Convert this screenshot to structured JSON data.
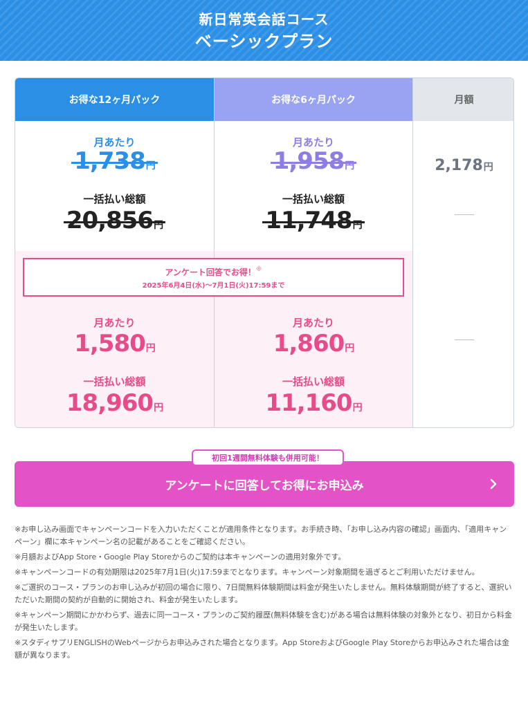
{
  "header": {
    "course": "新日常英会話コース",
    "plan": "ベーシックプラン"
  },
  "columns": [
    {
      "title": "お得な12ヶ月パック",
      "regular": {
        "month_label": "月あたり",
        "month_price": "1,738",
        "total_label": "一括払い総額",
        "total_price": "20,856"
      },
      "campaign": {
        "month_label": "月あたり",
        "month_price": "1,580",
        "total_label": "一括払い総額",
        "total_price": "18,960"
      }
    },
    {
      "title": "お得な6ヶ月パック",
      "regular": {
        "month_label": "月あたり",
        "month_price": "1,958",
        "total_label": "一括払い総額",
        "total_price": "11,748"
      },
      "campaign": {
        "month_label": "月あたり",
        "month_price": "1,860",
        "total_label": "一括払い総額",
        "total_price": "11,160"
      }
    },
    {
      "title": "月額",
      "price": "2,178"
    }
  ],
  "yen": "円",
  "campaign_box": {
    "title": "アンケート回答でお得！",
    "note_mark": "※",
    "period": "2025年6月4日(水)〜7月1日(火)17:59まで"
  },
  "cta": {
    "badge": "初回1週間無料体験も併用可能！",
    "label": "アンケートに回答してお得にお申込み"
  },
  "notes": [
    "※お申し込み画面でキャンペーンコードを入力いただくことが適用条件となります。お手続き時、「お申し込み内容の確認」画面内、「適用キャンペーン」欄に本キャンペーン名の記載があることをご確認ください。",
    "※月額およびApp Store・Google Play Storeからのご契約は本キャンペーンの適用対象外です。",
    "※キャンペーンコードの有効期限は2025年7月1日(火)17:59までとなります。キャンペーン対象期間を過ぎるとご利用いただけません。",
    "※ご選択のコース・プランのお申し込みが初回の場合に限り、7日間無料体験期間は料金が発生いたしません。無料体験期間が終了すると、選択いただいた期間の契約が自動的に開始され、料金が発生いたします。",
    "※キャンペーン期間にかかわらず、過去に同一コース・プランのご契約履歴(無料体験を含む)がある場合は無料体験の対象外となり、初日から料金が発生いたします。",
    "※スタディサプリENGLISHのWebページからお申込みされた場合となります。App StoreおよびGoogle Play Storeからお申込みされた場合は金額が異なります。"
  ],
  "colors": {
    "blue": "#2b8fe6",
    "purple": "#9aa3f2",
    "pink": "#e84b8a",
    "cta": "#e352c6"
  },
  "icons": {
    "cta_arrow": "chevron-right-icon"
  }
}
